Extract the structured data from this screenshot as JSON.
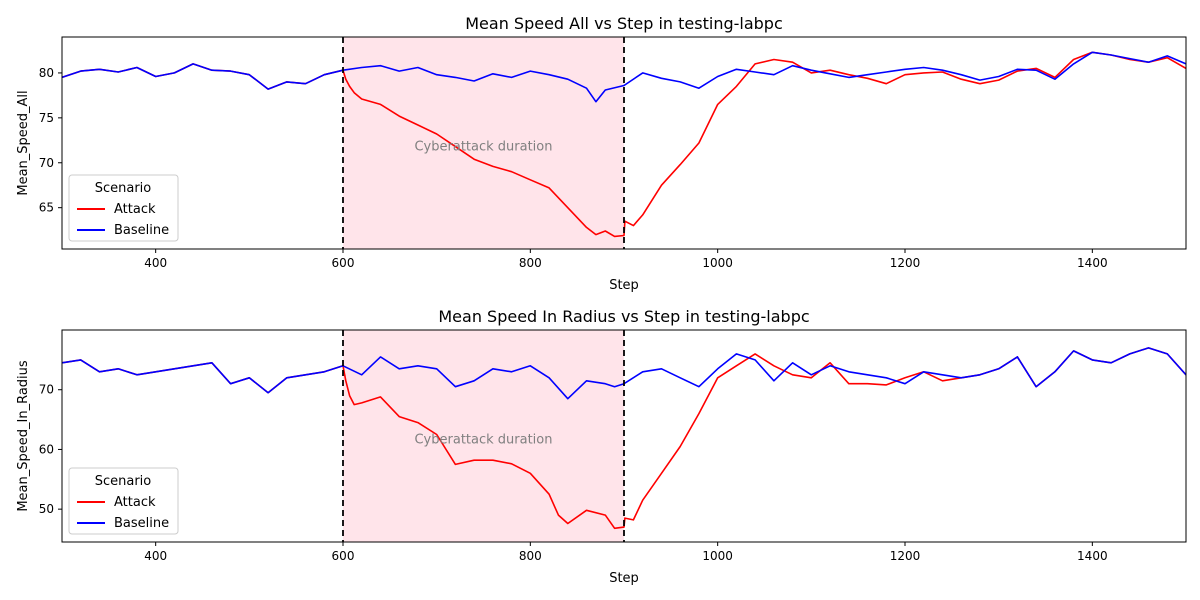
{
  "colors": {
    "attack": "#ff0000",
    "baseline": "#0000ff",
    "shade": "#ffe4ea",
    "vline": "#000000",
    "annotation": "#808080"
  },
  "chart_data": [
    {
      "type": "line",
      "title": "Mean Speed All vs Step in testing-labpc",
      "xlabel": "Step",
      "ylabel": "Mean_Speed_All",
      "xlim": [
        300,
        1500
      ],
      "ylim": [
        60.4,
        84
      ],
      "xticks": [
        400,
        600,
        800,
        1000,
        1200,
        1400
      ],
      "yticks": [
        65,
        70,
        75,
        80
      ],
      "grid": false,
      "legend": {
        "title": "Scenario",
        "placement": "lower-left"
      },
      "annotation": {
        "text": "Cyberattack duration",
        "x": 750,
        "y": 71.9
      },
      "shaded_region": [
        600,
        900
      ],
      "vlines": [
        600,
        900
      ],
      "series": [
        {
          "name": "Attack",
          "color": "#ff0000",
          "x": [
            300,
            320,
            340,
            360,
            380,
            400,
            420,
            440,
            460,
            480,
            500,
            520,
            540,
            560,
            580,
            600,
            603,
            607,
            612,
            620,
            640,
            660,
            680,
            700,
            720,
            740,
            760,
            780,
            800,
            820,
            840,
            860,
            870,
            880,
            890,
            900,
            901,
            910,
            920,
            940,
            960,
            980,
            1000,
            1020,
            1040,
            1060,
            1080,
            1100,
            1120,
            1140,
            1160,
            1180,
            1200,
            1220,
            1240,
            1260,
            1280,
            1300,
            1320,
            1340,
            1360,
            1380,
            1400,
            1420,
            1440,
            1460,
            1480,
            1500
          ],
          "y": [
            79.5,
            80.2,
            80.4,
            80.1,
            80.6,
            79.6,
            80.0,
            81.0,
            80.3,
            80.2,
            79.8,
            78.2,
            79.0,
            78.8,
            79.8,
            80.3,
            79.3,
            78.5,
            77.8,
            77.1,
            76.5,
            75.2,
            74.2,
            73.2,
            71.8,
            70.4,
            69.6,
            69.0,
            68.1,
            67.2,
            65.0,
            62.8,
            62.0,
            62.4,
            61.8,
            61.9,
            63.5,
            63.0,
            64.2,
            67.5,
            69.8,
            72.2,
            76.5,
            78.5,
            81.0,
            81.5,
            81.2,
            80.0,
            80.3,
            79.8,
            79.4,
            78.8,
            79.8,
            80.0,
            80.1,
            79.3,
            78.8,
            79.2,
            80.2,
            80.5,
            79.5,
            81.5,
            82.3,
            82.0,
            81.5,
            81.2,
            81.7,
            80.5
          ]
        },
        {
          "name": "Baseline",
          "color": "#0000ff",
          "x": [
            300,
            320,
            340,
            360,
            380,
            400,
            420,
            440,
            460,
            480,
            500,
            520,
            540,
            560,
            580,
            600,
            620,
            640,
            660,
            680,
            700,
            720,
            740,
            760,
            780,
            800,
            820,
            840,
            860,
            870,
            880,
            900,
            920,
            940,
            960,
            980,
            1000,
            1020,
            1040,
            1060,
            1080,
            1100,
            1120,
            1140,
            1160,
            1180,
            1200,
            1220,
            1240,
            1260,
            1280,
            1300,
            1320,
            1340,
            1360,
            1380,
            1400,
            1420,
            1440,
            1460,
            1480,
            1500
          ],
          "y": [
            79.5,
            80.2,
            80.4,
            80.1,
            80.6,
            79.6,
            80.0,
            81.0,
            80.3,
            80.2,
            79.8,
            78.2,
            79.0,
            78.8,
            79.8,
            80.3,
            80.6,
            80.8,
            80.2,
            80.6,
            79.8,
            79.5,
            79.1,
            79.9,
            79.5,
            80.2,
            79.8,
            79.3,
            78.3,
            76.8,
            78.1,
            78.6,
            80.0,
            79.4,
            79.0,
            78.3,
            79.6,
            80.4,
            80.1,
            79.8,
            80.8,
            80.3,
            79.9,
            79.5,
            79.8,
            80.1,
            80.4,
            80.6,
            80.3,
            79.8,
            79.2,
            79.6,
            80.4,
            80.3,
            79.3,
            81.0,
            82.3,
            82.0,
            81.6,
            81.2,
            81.9,
            81.0
          ]
        }
      ]
    },
    {
      "type": "line",
      "title": "Mean Speed In Radius vs Step in testing-labpc",
      "xlabel": "Step",
      "ylabel": "Mean_Speed_In_Radius",
      "xlim": [
        300,
        1500
      ],
      "ylim": [
        44.5,
        80
      ],
      "xticks": [
        400,
        600,
        800,
        1000,
        1200,
        1400
      ],
      "yticks": [
        50,
        60,
        70
      ],
      "grid": false,
      "legend": {
        "title": "Scenario",
        "placement": "lower-left"
      },
      "annotation": {
        "text": "Cyberattack duration",
        "x": 750,
        "y": 61.8
      },
      "shaded_region": [
        600,
        900
      ],
      "vlines": [
        600,
        900
      ],
      "series": [
        {
          "name": "Attack",
          "color": "#ff0000",
          "x": [
            300,
            320,
            340,
            360,
            380,
            400,
            420,
            440,
            460,
            480,
            500,
            520,
            540,
            560,
            580,
            600,
            603,
            607,
            612,
            620,
            640,
            660,
            680,
            700,
            720,
            740,
            760,
            780,
            800,
            820,
            830,
            840,
            860,
            880,
            890,
            900,
            901,
            910,
            920,
            940,
            960,
            980,
            1000,
            1020,
            1040,
            1060,
            1080,
            1100,
            1120,
            1140,
            1160,
            1180,
            1200,
            1220,
            1240,
            1260,
            1280,
            1300,
            1320,
            1340,
            1360,
            1380,
            1400,
            1420,
            1440,
            1460,
            1480,
            1500
          ],
          "y": [
            74.5,
            75.0,
            73.0,
            73.5,
            72.5,
            73.0,
            73.5,
            74.0,
            74.5,
            71.0,
            72.0,
            69.5,
            72.0,
            72.5,
            73.0,
            74.0,
            71.5,
            69.0,
            67.5,
            67.8,
            68.8,
            65.5,
            64.5,
            62.5,
            57.5,
            58.2,
            58.2,
            57.6,
            56.0,
            52.5,
            49.0,
            47.6,
            49.8,
            49.0,
            46.8,
            47.0,
            48.5,
            48.2,
            51.5,
            56.0,
            60.5,
            66.0,
            72.0,
            74.0,
            76.0,
            74.0,
            72.5,
            72.0,
            74.5,
            71.0,
            71.0,
            70.8,
            72.0,
            73.0,
            71.5,
            72.0,
            72.5,
            73.5,
            75.5,
            70.5,
            73.0,
            76.5,
            75.0,
            74.5,
            76.0,
            77.0,
            76.0,
            72.5
          ]
        },
        {
          "name": "Baseline",
          "color": "#0000ff",
          "x": [
            300,
            320,
            340,
            360,
            380,
            400,
            420,
            440,
            460,
            480,
            500,
            520,
            540,
            560,
            580,
            600,
            620,
            640,
            660,
            680,
            700,
            720,
            740,
            760,
            780,
            800,
            820,
            840,
            860,
            880,
            890,
            900,
            920,
            940,
            960,
            980,
            1000,
            1020,
            1040,
            1060,
            1080,
            1100,
            1120,
            1140,
            1160,
            1180,
            1200,
            1220,
            1240,
            1260,
            1280,
            1300,
            1320,
            1340,
            1360,
            1380,
            1400,
            1420,
            1440,
            1460,
            1480,
            1500
          ],
          "y": [
            74.5,
            75.0,
            73.0,
            73.5,
            72.5,
            73.0,
            73.5,
            74.0,
            74.5,
            71.0,
            72.0,
            69.5,
            72.0,
            72.5,
            73.0,
            74.0,
            72.5,
            75.5,
            73.5,
            74.0,
            73.5,
            70.5,
            71.5,
            73.5,
            73.0,
            74.0,
            72.0,
            68.5,
            71.5,
            71.0,
            70.5,
            71.0,
            73.0,
            73.5,
            72.0,
            70.5,
            73.5,
            76.0,
            75.0,
            71.5,
            74.5,
            72.5,
            74.0,
            73.0,
            72.5,
            72.0,
            71.0,
            73.0,
            72.5,
            72.0,
            72.5,
            73.5,
            75.5,
            70.5,
            73.0,
            76.5,
            75.0,
            74.5,
            76.0,
            77.0,
            76.0,
            72.5
          ]
        }
      ]
    }
  ]
}
